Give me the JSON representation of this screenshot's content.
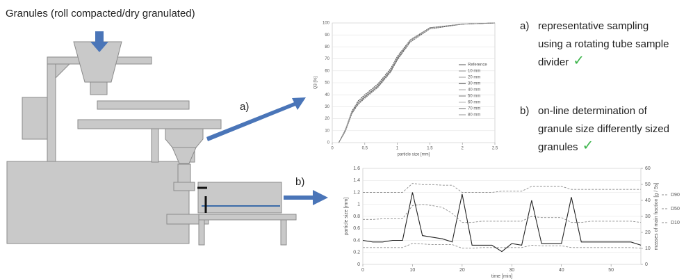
{
  "header": {
    "title": "Granules (roll compacted/dry granulated)"
  },
  "arrows": {
    "a": "a)",
    "b": "b)"
  },
  "notes": [
    {
      "label": "a)",
      "lines": [
        "representative sampling",
        "using a rotating tube sample",
        "divider"
      ],
      "check": "✓"
    },
    {
      "label": "b)",
      "lines": [
        "on-line determination of",
        "granule size differently sized",
        "granules"
      ],
      "check": "✓"
    }
  ],
  "chart_data": [
    {
      "type": "line",
      "xlabel": "particle size [mm]",
      "ylabel": "Q3 [%]",
      "x": [
        0.1,
        0.2,
        0.3,
        0.4,
        0.5,
        0.7,
        0.9,
        1.0,
        1.2,
        1.5,
        2.0,
        2.5
      ],
      "xlim": [
        0,
        2.5
      ],
      "xticks": [
        0,
        0.5,
        1,
        1.5,
        2,
        2.5
      ],
      "ylim": [
        0,
        100
      ],
      "yticks": [
        0,
        10,
        20,
        30,
        40,
        50,
        60,
        70,
        80,
        90,
        100
      ],
      "series": [
        {
          "name": "Reference",
          "color": "#555555",
          "values": [
            0,
            10,
            25,
            33,
            38,
            47,
            60,
            70,
            85,
            96,
            99,
            100
          ]
        },
        {
          "name": "10 mm",
          "color": "#8a8a8a",
          "values": [
            0,
            9,
            24,
            32,
            37,
            46,
            59,
            69,
            84,
            95,
            99,
            100
          ]
        },
        {
          "name": "20 mm",
          "color": "#9a9a9a",
          "values": [
            0,
            11,
            26,
            34,
            39,
            48,
            61,
            71,
            86,
            96,
            99,
            100
          ]
        },
        {
          "name": "30 mm",
          "color": "#333333",
          "values": [
            0,
            10,
            26,
            35,
            40,
            49,
            62,
            72,
            86,
            96,
            99,
            100
          ]
        },
        {
          "name": "40 mm",
          "color": "#a5a5a5",
          "values": [
            0,
            9,
            24,
            33,
            38,
            47,
            60,
            70,
            85,
            95,
            99,
            100
          ]
        },
        {
          "name": "50 mm",
          "color": "#7a7a7a",
          "values": [
            0,
            10,
            25,
            32,
            37,
            46,
            59,
            70,
            85,
            96,
            99,
            100
          ]
        },
        {
          "name": "60 mm",
          "color": "#b0b0b0",
          "values": [
            0,
            11,
            25,
            34,
            39,
            48,
            61,
            71,
            85,
            96,
            99,
            100
          ]
        },
        {
          "name": "70 mm",
          "color": "#6a6a6a",
          "values": [
            0,
            10,
            24,
            33,
            38,
            47,
            60,
            69,
            84,
            95,
            99,
            100
          ]
        },
        {
          "name": "80 mm",
          "color": "#959595",
          "values": [
            0,
            10,
            25,
            33,
            39,
            48,
            61,
            71,
            86,
            96,
            99,
            100
          ]
        }
      ],
      "legend": "right"
    },
    {
      "type": "line",
      "xlabel": "time [min]",
      "ylabel": "particle size [mm]",
      "y2label": "masses of main fraction [g / 5s]",
      "x": [
        0,
        2,
        4,
        6,
        8,
        10,
        12,
        14,
        16,
        18,
        20,
        22,
        24,
        26,
        28,
        30,
        32,
        34,
        36,
        38,
        40,
        42,
        44,
        46,
        48,
        50,
        52,
        54,
        56
      ],
      "xlim": [
        0,
        56
      ],
      "xticks": [
        0,
        10,
        20,
        30,
        40,
        50
      ],
      "ylim": [
        0,
        1.6
      ],
      "yticks": [
        0,
        0.2,
        0.4,
        0.6,
        0.8,
        1,
        1.2,
        1.4,
        1.6
      ],
      "y2lim": [
        0,
        60
      ],
      "y2ticks": [
        0,
        10,
        20,
        30,
        40,
        50,
        60
      ],
      "series": [
        {
          "name": "D90",
          "color": "#8c8c8c",
          "values": [
            1.2,
            1.2,
            1.2,
            1.2,
            1.2,
            1.35,
            1.33,
            1.33,
            1.32,
            1.32,
            1.2,
            1.2,
            1.2,
            1.2,
            1.22,
            1.22,
            1.22,
            1.3,
            1.3,
            1.3,
            1.3,
            1.25,
            1.25,
            1.25,
            1.25,
            1.25,
            1.25,
            1.25,
            1.25
          ]
        },
        {
          "name": "D50",
          "color": "#8c8c8c",
          "values": [
            0.75,
            0.75,
            0.76,
            0.76,
            0.76,
            0.98,
            1.0,
            0.98,
            0.95,
            0.85,
            0.7,
            0.7,
            0.72,
            0.72,
            0.72,
            0.72,
            0.72,
            0.8,
            0.78,
            0.78,
            0.78,
            0.7,
            0.7,
            0.72,
            0.72,
            0.72,
            0.72,
            0.72,
            0.7
          ]
        },
        {
          "name": "D10",
          "color": "#8c8c8c",
          "values": [
            0.28,
            0.28,
            0.28,
            0.28,
            0.28,
            0.35,
            0.34,
            0.33,
            0.33,
            0.33,
            0.27,
            0.27,
            0.28,
            0.28,
            0.28,
            0.28,
            0.28,
            0.32,
            0.31,
            0.31,
            0.31,
            0.28,
            0.28,
            0.28,
            0.28,
            0.28,
            0.28,
            0.28,
            0.27
          ]
        },
        {
          "color": "#222222",
          "axis": "y2",
          "values": [
            15,
            14,
            14,
            15,
            15,
            45,
            18,
            17,
            16,
            14,
            44,
            12,
            12,
            12,
            8,
            13,
            12,
            40,
            13,
            13,
            13,
            42,
            14,
            14,
            14,
            14,
            14,
            14,
            12
          ]
        }
      ],
      "legend": "outside-right"
    }
  ]
}
